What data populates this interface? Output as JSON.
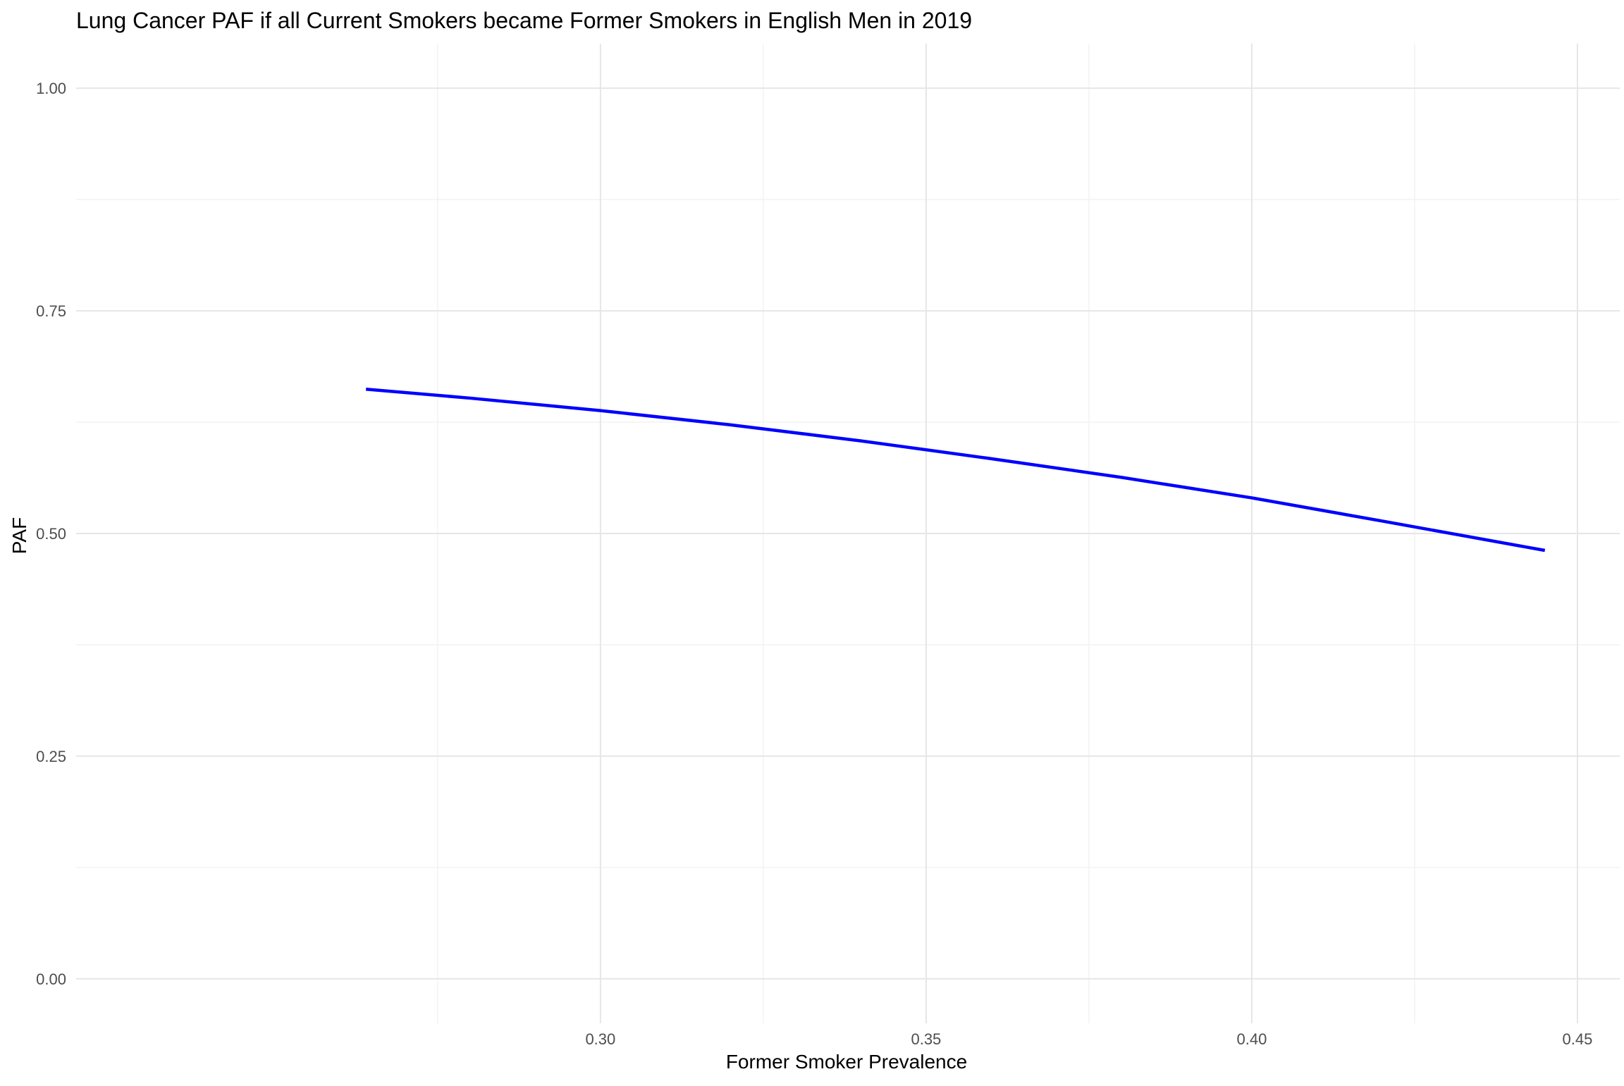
{
  "chart_data": {
    "type": "line",
    "title": "Lung Cancer PAF if all Current Smokers became Former Smokers in English Men in 2019",
    "xlabel": "Former Smoker Prevalence",
    "ylabel": "PAF",
    "xlim": [
      0.2195,
      0.4565
    ],
    "ylim": [
      -0.05,
      1.05
    ],
    "x_ticks": [
      0.3,
      0.35,
      0.4,
      0.45
    ],
    "x_tick_labels": [
      "0.30",
      "0.35",
      "0.40",
      "0.45"
    ],
    "x_minor_ticks": [
      0.275,
      0.325,
      0.375,
      0.425
    ],
    "y_ticks": [
      0.0,
      0.25,
      0.5,
      0.75,
      1.0
    ],
    "y_tick_labels": [
      "0.00",
      "0.25",
      "0.50",
      "0.75",
      "1.00"
    ],
    "y_minor_ticks": [
      0.125,
      0.375,
      0.625,
      0.875
    ],
    "grid": true,
    "series": [
      {
        "color": "#0000ff",
        "x": [
          0.264,
          0.28,
          0.3,
          0.32,
          0.34,
          0.36,
          0.38,
          0.4,
          0.42,
          0.445
        ],
        "y": [
          0.662,
          0.652,
          0.638,
          0.622,
          0.604,
          0.584,
          0.563,
          0.54,
          0.514,
          0.481
        ]
      }
    ]
  }
}
